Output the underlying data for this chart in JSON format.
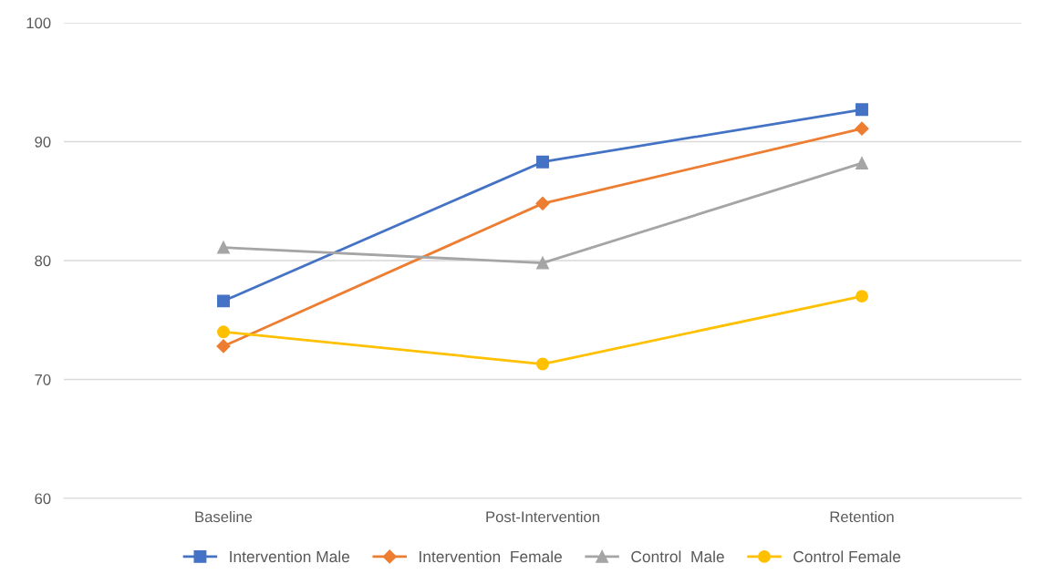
{
  "chart_data": {
    "type": "line",
    "categories": [
      "Baseline",
      "Post-Intervention",
      "Retention"
    ],
    "series": [
      {
        "name": "Intervention Male",
        "color": "#4472c4",
        "marker": "square",
        "values": [
          76.6,
          88.3,
          92.7
        ]
      },
      {
        "name": "Intervention  Female",
        "color": "#ed7d31",
        "marker": "diamond",
        "values": [
          72.8,
          84.8,
          91.1
        ]
      },
      {
        "name": "Control  Male",
        "color": "#a5a5a5",
        "marker": "triangle",
        "values": [
          81.1,
          79.8,
          88.2
        ]
      },
      {
        "name": "Control Female",
        "color": "#ffc000",
        "marker": "circle",
        "values": [
          74.0,
          71.3,
          77.0
        ]
      }
    ],
    "ylim": [
      60,
      100
    ],
    "yticks": [
      60,
      70,
      80,
      90,
      100
    ],
    "grid": "y",
    "legend": "bottom"
  }
}
